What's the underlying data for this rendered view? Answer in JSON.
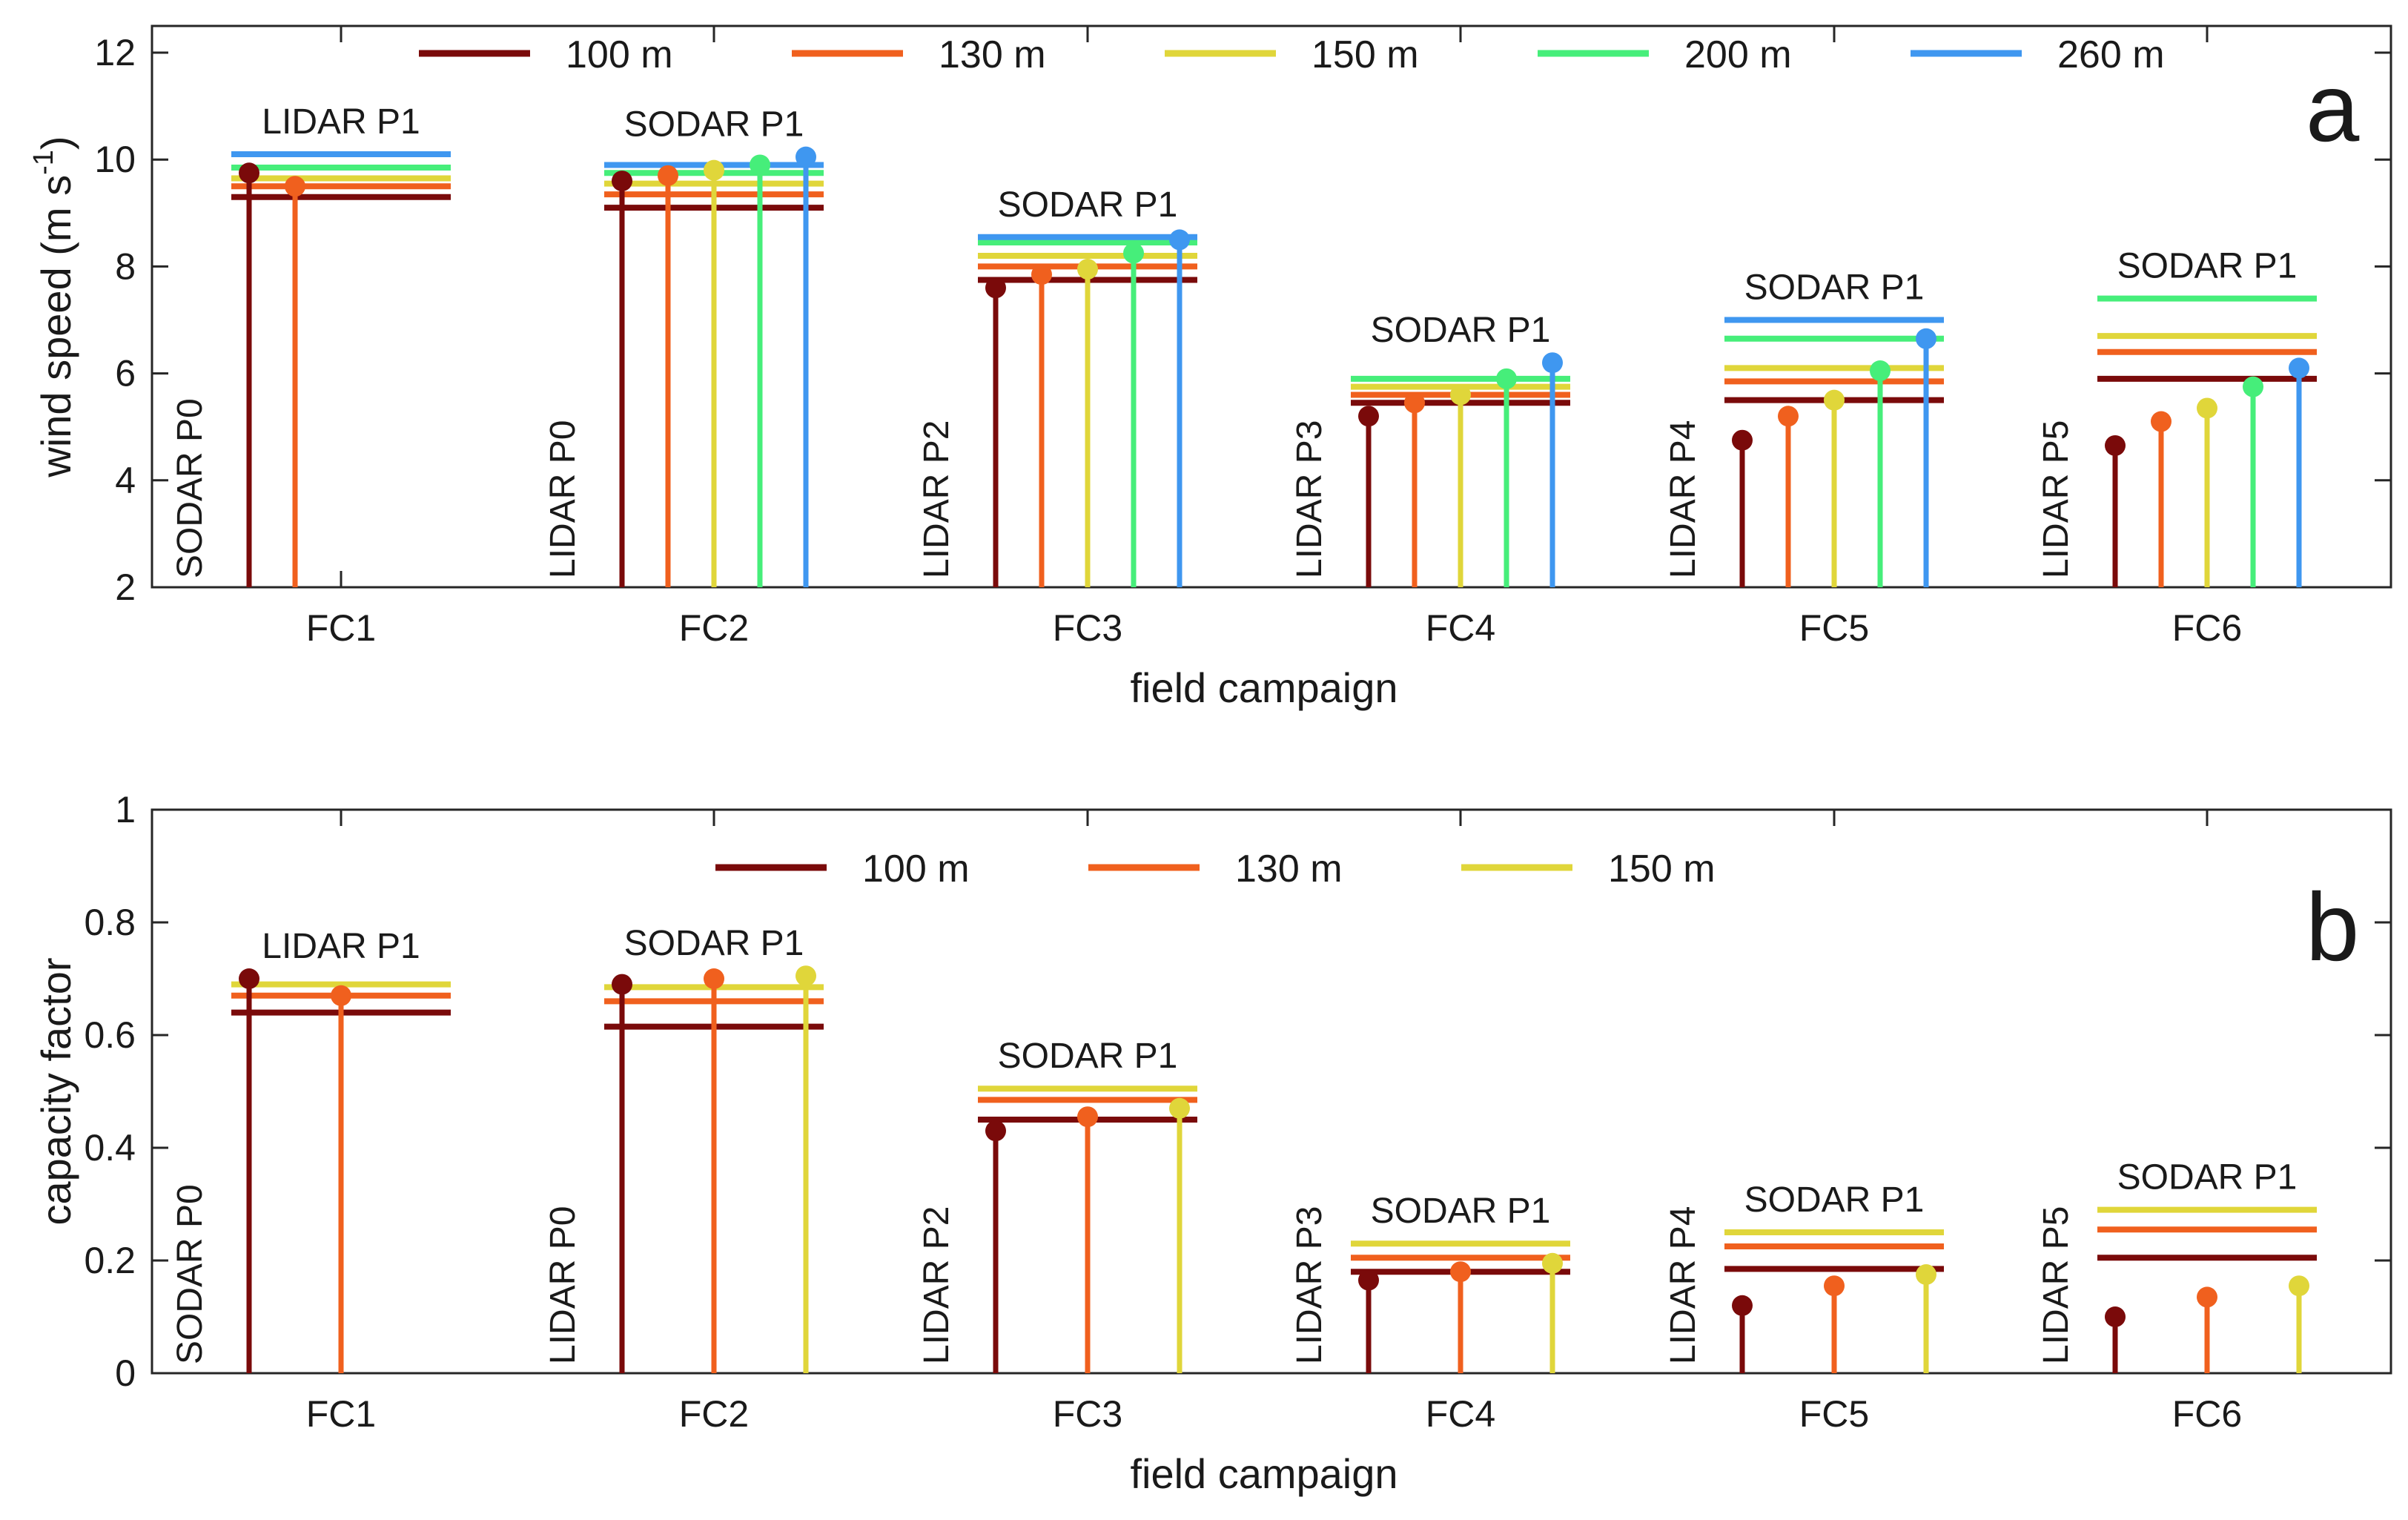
{
  "chart_data": [
    {
      "panel": "a",
      "type": "stem",
      "xlabel": "field campaign",
      "ylabel": "wind speed (m s",
      "ylabel_sup": "-1",
      "ylabel_close": ")",
      "ylim": [
        2,
        12.5
      ],
      "yticks": [
        2,
        4,
        6,
        8,
        10,
        12
      ],
      "categories": [
        "FC1",
        "FC2",
        "FC3",
        "FC4",
        "FC5",
        "FC6"
      ],
      "legend": [
        "100 m",
        "130 m",
        "150 m",
        "200 m",
        "260 m"
      ],
      "colors": [
        "#7a0a0a",
        "#f0601e",
        "#e0d63a",
        "#46ee7a",
        "#3f97f0"
      ],
      "stem_labels": [
        "SODAR P0",
        "LIDAR P0",
        "LIDAR P2",
        "LIDAR P3",
        "LIDAR P4",
        "LIDAR P5"
      ],
      "ref_labels": [
        "LIDAR P1",
        "SODAR P1",
        "SODAR P1",
        "SODAR P1",
        "SODAR P1",
        "SODAR P1"
      ],
      "stems": [
        [
          9.75,
          9.5,
          null,
          null,
          null
        ],
        [
          9.6,
          9.7,
          9.8,
          9.9,
          10.05
        ],
        [
          7.6,
          7.85,
          7.95,
          8.25,
          8.5
        ],
        [
          5.2,
          5.45,
          5.6,
          5.9,
          6.2
        ],
        [
          4.75,
          5.2,
          5.5,
          6.05,
          6.65
        ],
        [
          4.65,
          5.1,
          5.35,
          5.75,
          6.1
        ]
      ],
      "refs": [
        [
          9.3,
          9.5,
          9.65,
          9.85,
          10.1
        ],
        [
          9.1,
          9.35,
          9.55,
          9.75,
          9.9
        ],
        [
          7.75,
          8.0,
          8.2,
          8.45,
          8.55
        ],
        [
          5.45,
          5.6,
          5.75,
          5.9,
          null
        ],
        [
          5.5,
          5.85,
          6.1,
          6.65,
          7.0
        ],
        [
          5.9,
          6.4,
          6.7,
          7.4,
          null
        ]
      ]
    },
    {
      "panel": "b",
      "type": "stem",
      "xlabel": "field campaign",
      "ylabel": "capacity factor",
      "ylim": [
        0,
        1
      ],
      "yticks": [
        0,
        0.2,
        0.4,
        0.6,
        0.8,
        1
      ],
      "categories": [
        "FC1",
        "FC2",
        "FC3",
        "FC4",
        "FC5",
        "FC6"
      ],
      "legend": [
        "100 m",
        "130 m",
        "150 m"
      ],
      "colors": [
        "#7a0a0a",
        "#f0601e",
        "#e0d63a"
      ],
      "stem_labels": [
        "SODAR P0",
        "LIDAR P0",
        "LIDAR P2",
        "LIDAR P3",
        "LIDAR P4",
        "LIDAR P5"
      ],
      "ref_labels": [
        "LIDAR P1",
        "SODAR P1",
        "SODAR P1",
        "SODAR P1",
        "SODAR P1",
        "SODAR P1"
      ],
      "stems": [
        [
          0.7,
          0.67,
          null
        ],
        [
          0.69,
          0.7,
          0.705
        ],
        [
          0.43,
          0.455,
          0.47
        ],
        [
          0.165,
          0.18,
          0.195
        ],
        [
          0.12,
          0.155,
          0.175
        ],
        [
          0.1,
          0.135,
          0.155
        ]
      ],
      "refs": [
        [
          0.64,
          0.67,
          0.69
        ],
        [
          0.615,
          0.66,
          0.685
        ],
        [
          0.45,
          0.485,
          0.505
        ],
        [
          0.18,
          0.205,
          0.23
        ],
        [
          0.185,
          0.225,
          0.25
        ],
        [
          0.205,
          0.255,
          0.29
        ]
      ]
    }
  ]
}
